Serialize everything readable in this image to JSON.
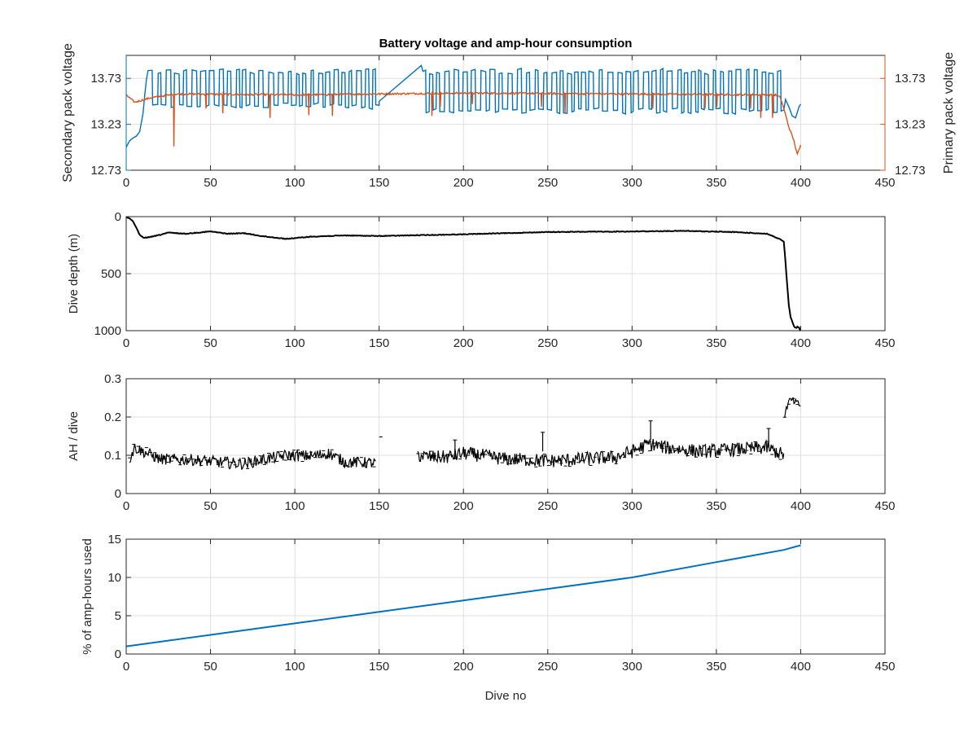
{
  "colors": {
    "secondary": "#0072bd",
    "primary": "#d95319",
    "black": "#000000",
    "axis": "#262626",
    "grid": "#dfdfdf"
  },
  "chart_data": [
    {
      "type": "line",
      "title": "Battery voltage and amp-hour consumption",
      "xlabel": "",
      "ylabel": "Secondary pack voltage",
      "ylabel_right": "Primary pack voltage",
      "xlim": [
        0,
        450
      ],
      "ylim": [
        12.73,
        13.98
      ],
      "ylim_right": [
        12.73,
        13.98
      ],
      "xticks": [
        "0",
        "50",
        "100",
        "150",
        "200",
        "250",
        "300",
        "350",
        "400",
        "450"
      ],
      "yticks": [
        "12.73",
        "13.23",
        "13.73"
      ],
      "yticks_right": [
        "12.73",
        "13.23",
        "13.73"
      ],
      "grid": true,
      "series": [
        {
          "axis": "left",
          "color": "secondary",
          "style": "oscillating",
          "segments": [
            {
              "x": [
                0,
                2,
                4,
                6,
                8,
                10,
                11,
                12
              ],
              "y": [
                12.98,
                13.05,
                13.08,
                13.1,
                13.15,
                13.35,
                13.55,
                13.72
              ]
            },
            {
              "x": [
                13,
                150
              ],
              "lo": 13.4,
              "hi": 13.83,
              "period": 4
            },
            {
              "x": [
                150,
                175
              ],
              "y": [
                13.48,
                13.87
              ]
            },
            {
              "x": [
                176,
                390
              ],
              "lo": 13.35,
              "hi": 13.83,
              "period": 4
            },
            {
              "x": [
                391,
                393,
                395,
                397,
                399,
                400
              ],
              "y": [
                13.5,
                13.42,
                13.32,
                13.3,
                13.42,
                13.45
              ]
            }
          ]
        },
        {
          "axis": "right",
          "color": "primary",
          "baseline": [
            [
              0,
              13.55
            ],
            [
              5,
              13.47
            ],
            [
              15,
              13.52
            ],
            [
              30,
              13.56
            ],
            [
              100,
              13.55
            ],
            [
              200,
              13.57
            ],
            [
              300,
              13.56
            ],
            [
              385,
              13.55
            ],
            [
              388,
              13.52
            ],
            [
              390,
              13.4
            ],
            [
              393,
              13.2
            ],
            [
              396,
              13.05
            ],
            [
              398,
              12.9
            ],
            [
              400,
              13.0
            ]
          ],
          "spikes": [
            [
              28,
              12.99
            ],
            [
              47,
              13.4
            ],
            [
              57,
              13.35
            ],
            [
              85,
              13.3
            ],
            [
              108,
              13.33
            ],
            [
              122,
              13.32
            ],
            [
              181,
              13.32
            ],
            [
              186,
              13.42
            ],
            [
              205,
              13.45
            ],
            [
              246,
              13.42
            ],
            [
              260,
              13.35
            ],
            [
              312,
              13.4
            ],
            [
              343,
              13.4
            ],
            [
              350,
              13.42
            ],
            [
              370,
              13.4
            ],
            [
              376,
              13.3
            ],
            [
              383,
              13.3
            ]
          ]
        }
      ]
    },
    {
      "type": "line",
      "xlabel": "",
      "ylabel": "Dive depth (m)",
      "xlim": [
        0,
        450
      ],
      "ylim": [
        0,
        1000
      ],
      "y_reversed": true,
      "xticks": [
        "0",
        "50",
        "100",
        "150",
        "200",
        "250",
        "300",
        "350",
        "400",
        "450"
      ],
      "yticks": [
        "0",
        "500",
        "1000"
      ],
      "grid": true,
      "series": [
        {
          "color": "black",
          "x": [
            0,
            2,
            4,
            6,
            8,
            10,
            14,
            20,
            25,
            35,
            50,
            60,
            70,
            80,
            95,
            110,
            130,
            150,
            200,
            250,
            300,
            330,
            360,
            380,
            388,
            390,
            391,
            392,
            393,
            394,
            395,
            396,
            397,
            398,
            399,
            400
          ],
          "y": [
            5,
            15,
            40,
            100,
            160,
            185,
            180,
            160,
            140,
            150,
            130,
            150,
            145,
            170,
            195,
            175,
            165,
            170,
            155,
            135,
            130,
            125,
            135,
            150,
            200,
            220,
            400,
            600,
            780,
            880,
            920,
            960,
            980,
            970,
            980,
            985
          ]
        }
      ]
    },
    {
      "type": "scatter",
      "xlabel": "",
      "ylabel": "AH / dive",
      "xlim": [
        0,
        450
      ],
      "ylim": [
        0,
        0.3
      ],
      "xticks": [
        "0",
        "50",
        "100",
        "150",
        "200",
        "250",
        "300",
        "350",
        "400",
        "450"
      ],
      "yticks": [
        "0",
        "0.1",
        "0.2",
        "0.3"
      ],
      "grid": true,
      "series": [
        {
          "color": "black",
          "style": "noisy-line",
          "segments": [
            {
              "x": [
                2,
                5,
                10,
                20,
                40,
                60,
                70,
                80,
                95,
                110,
                120,
                130,
                148
              ],
              "y": [
                0.09,
                0.12,
                0.11,
                0.09,
                0.088,
                0.08,
                0.078,
                0.088,
                0.1,
                0.098,
                0.105,
                0.082,
                0.08
              ],
              "noise": 0.015
            },
            {
              "x": [
                151,
                151.5
              ],
              "y": [
                0.148,
                0.148
              ],
              "noise": 0
            },
            {
              "x": [
                173,
                180,
                190,
                200,
                210,
                225,
                240,
                250,
                270,
                290,
                300,
                310,
                320,
                340,
                360,
                380,
                390
              ],
              "y": [
                0.1,
                0.095,
                0.095,
                0.105,
                0.1,
                0.09,
                0.088,
                0.085,
                0.09,
                0.095,
                0.11,
                0.13,
                0.12,
                0.11,
                0.115,
                0.12,
                0.1
              ],
              "noise": 0.018
            },
            {
              "x": [
                390.5,
                392,
                394,
                396,
                398,
                400
              ],
              "y": [
                0.2,
                0.23,
                0.245,
                0.24,
                0.235,
                0.23
              ],
              "noise": 0.01
            }
          ],
          "spikes": [
            [
              247,
              0.16
            ],
            [
              311,
              0.19
            ],
            [
              381,
              0.17
            ],
            [
              195,
              0.14
            ]
          ]
        }
      ]
    },
    {
      "type": "line",
      "xlabel": "Dive no",
      "ylabel": "% of amp-hours used",
      "xlim": [
        0,
        450
      ],
      "ylim": [
        0,
        15
      ],
      "xticks": [
        "0",
        "50",
        "100",
        "150",
        "200",
        "250",
        "300",
        "350",
        "400",
        "450"
      ],
      "yticks": [
        "0",
        "5",
        "10",
        "15"
      ],
      "grid": true,
      "series": [
        {
          "color": "secondary",
          "x": [
            0,
            50,
            100,
            150,
            200,
            250,
            300,
            350,
            390,
            400
          ],
          "y": [
            1.0,
            2.5,
            4.0,
            5.5,
            7.0,
            8.5,
            10.0,
            12.0,
            13.6,
            14.2
          ]
        }
      ]
    }
  ]
}
